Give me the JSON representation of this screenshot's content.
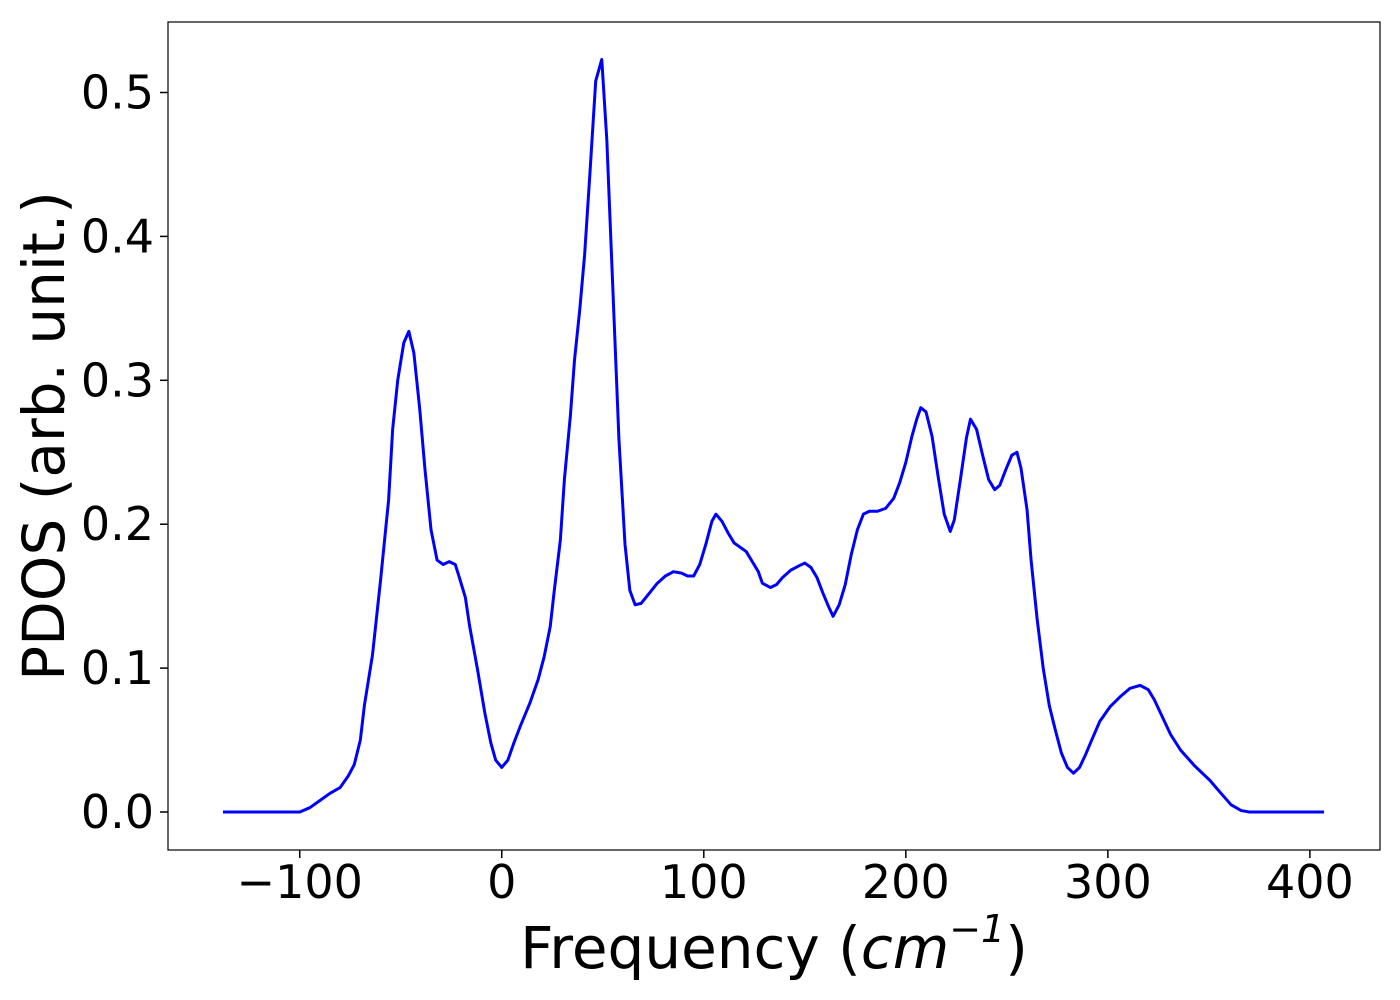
{
  "chart_data": {
    "type": "line",
    "xlabel": [
      "Frequency (",
      "cm",
      "−1",
      ")"
    ],
    "ylabel": "PDOS (arb. unit.)",
    "x": [
      -138,
      -100,
      -95,
      -90,
      -85,
      -80,
      -76,
      -73,
      -70,
      -68,
      -64,
      -60,
      -56,
      -54,
      -51.5,
      -48.5,
      -46,
      -43.5,
      -40.6,
      -38,
      -35,
      -32,
      -29,
      -26,
      -23,
      -21,
      -18,
      -16,
      -12,
      -8.4,
      -5.4,
      -3,
      0,
      3,
      6,
      9,
      14,
      18,
      21,
      24,
      26,
      29,
      31,
      34,
      36,
      38.6,
      41,
      43.6,
      46.5,
      49.5,
      52,
      55,
      58,
      61,
      63.4,
      66,
      69,
      73,
      77,
      81,
      85,
      89,
      92,
      95,
      98,
      101,
      104,
      106,
      109,
      112,
      115,
      118,
      121,
      124,
      127,
      129,
      133,
      136,
      139,
      143,
      147,
      150,
      153,
      156,
      159,
      162,
      164,
      167,
      170,
      173,
      176,
      179,
      182,
      186,
      190,
      194,
      197,
      200,
      203,
      205.4,
      207.4,
      210,
      213,
      216,
      219,
      222,
      224,
      227,
      230,
      232,
      235,
      238,
      241,
      244,
      246.5,
      249.5,
      252.5,
      255,
      257,
      260,
      262,
      265,
      268,
      271,
      274,
      277,
      280,
      283,
      286,
      289,
      292,
      296,
      301,
      306,
      311,
      316,
      320,
      323,
      327,
      331,
      336,
      343,
      350.5,
      356,
      361,
      366,
      370,
      407
    ],
    "series": [
      {
        "name": "PDOS",
        "color": "#0000ff",
        "values": [
          0,
          0,
          0.003,
          0.008,
          0.013,
          0.017,
          0.025,
          0.033,
          0.05,
          0.074,
          0.109,
          0.161,
          0.217,
          0.266,
          0.3,
          0.326,
          0.334,
          0.319,
          0.28,
          0.238,
          0.196,
          0.175,
          0.172,
          0.174,
          0.172,
          0.163,
          0.149,
          0.13,
          0.099,
          0.069,
          0.048,
          0.036,
          0.031,
          0.036,
          0.048,
          0.059,
          0.076,
          0.092,
          0.108,
          0.129,
          0.154,
          0.189,
          0.231,
          0.276,
          0.314,
          0.349,
          0.387,
          0.443,
          0.508,
          0.523,
          0.467,
          0.363,
          0.259,
          0.186,
          0.154,
          0.144,
          0.145,
          0.152,
          0.159,
          0.164,
          0.167,
          0.166,
          0.164,
          0.164,
          0.172,
          0.186,
          0.202,
          0.207,
          0.202,
          0.194,
          0.187,
          0.184,
          0.181,
          0.174,
          0.167,
          0.159,
          0.156,
          0.158,
          0.163,
          0.168,
          0.171,
          0.173,
          0.17,
          0.163,
          0.152,
          0.142,
          0.136,
          0.144,
          0.158,
          0.179,
          0.196,
          0.207,
          0.209,
          0.209,
          0.211,
          0.218,
          0.229,
          0.243,
          0.261,
          0.273,
          0.281,
          0.278,
          0.261,
          0.233,
          0.207,
          0.195,
          0.203,
          0.231,
          0.26,
          0.273,
          0.266,
          0.248,
          0.231,
          0.224,
          0.227,
          0.238,
          0.248,
          0.25,
          0.239,
          0.21,
          0.175,
          0.134,
          0.1,
          0.074,
          0.057,
          0.041,
          0.031,
          0.027,
          0.031,
          0.04,
          0.05,
          0.063,
          0.073,
          0.08,
          0.086,
          0.088,
          0.085,
          0.078,
          0.066,
          0.054,
          0.043,
          0.032,
          0.022,
          0.013,
          0.005,
          0.001,
          0,
          0
        ]
      }
    ],
    "xlim": [
      -165.2,
      434.7
    ],
    "ylim": [
      -0.0264,
      0.549
    ],
    "xticks": [
      {
        "value": -100,
        "label": "−100"
      },
      0,
      100,
      200,
      300,
      400
    ],
    "yticks": [
      {
        "value": 0,
        "label": "0.0"
      },
      0.1,
      0.2,
      0.3,
      0.4,
      0.5
    ],
    "grid": false
  }
}
